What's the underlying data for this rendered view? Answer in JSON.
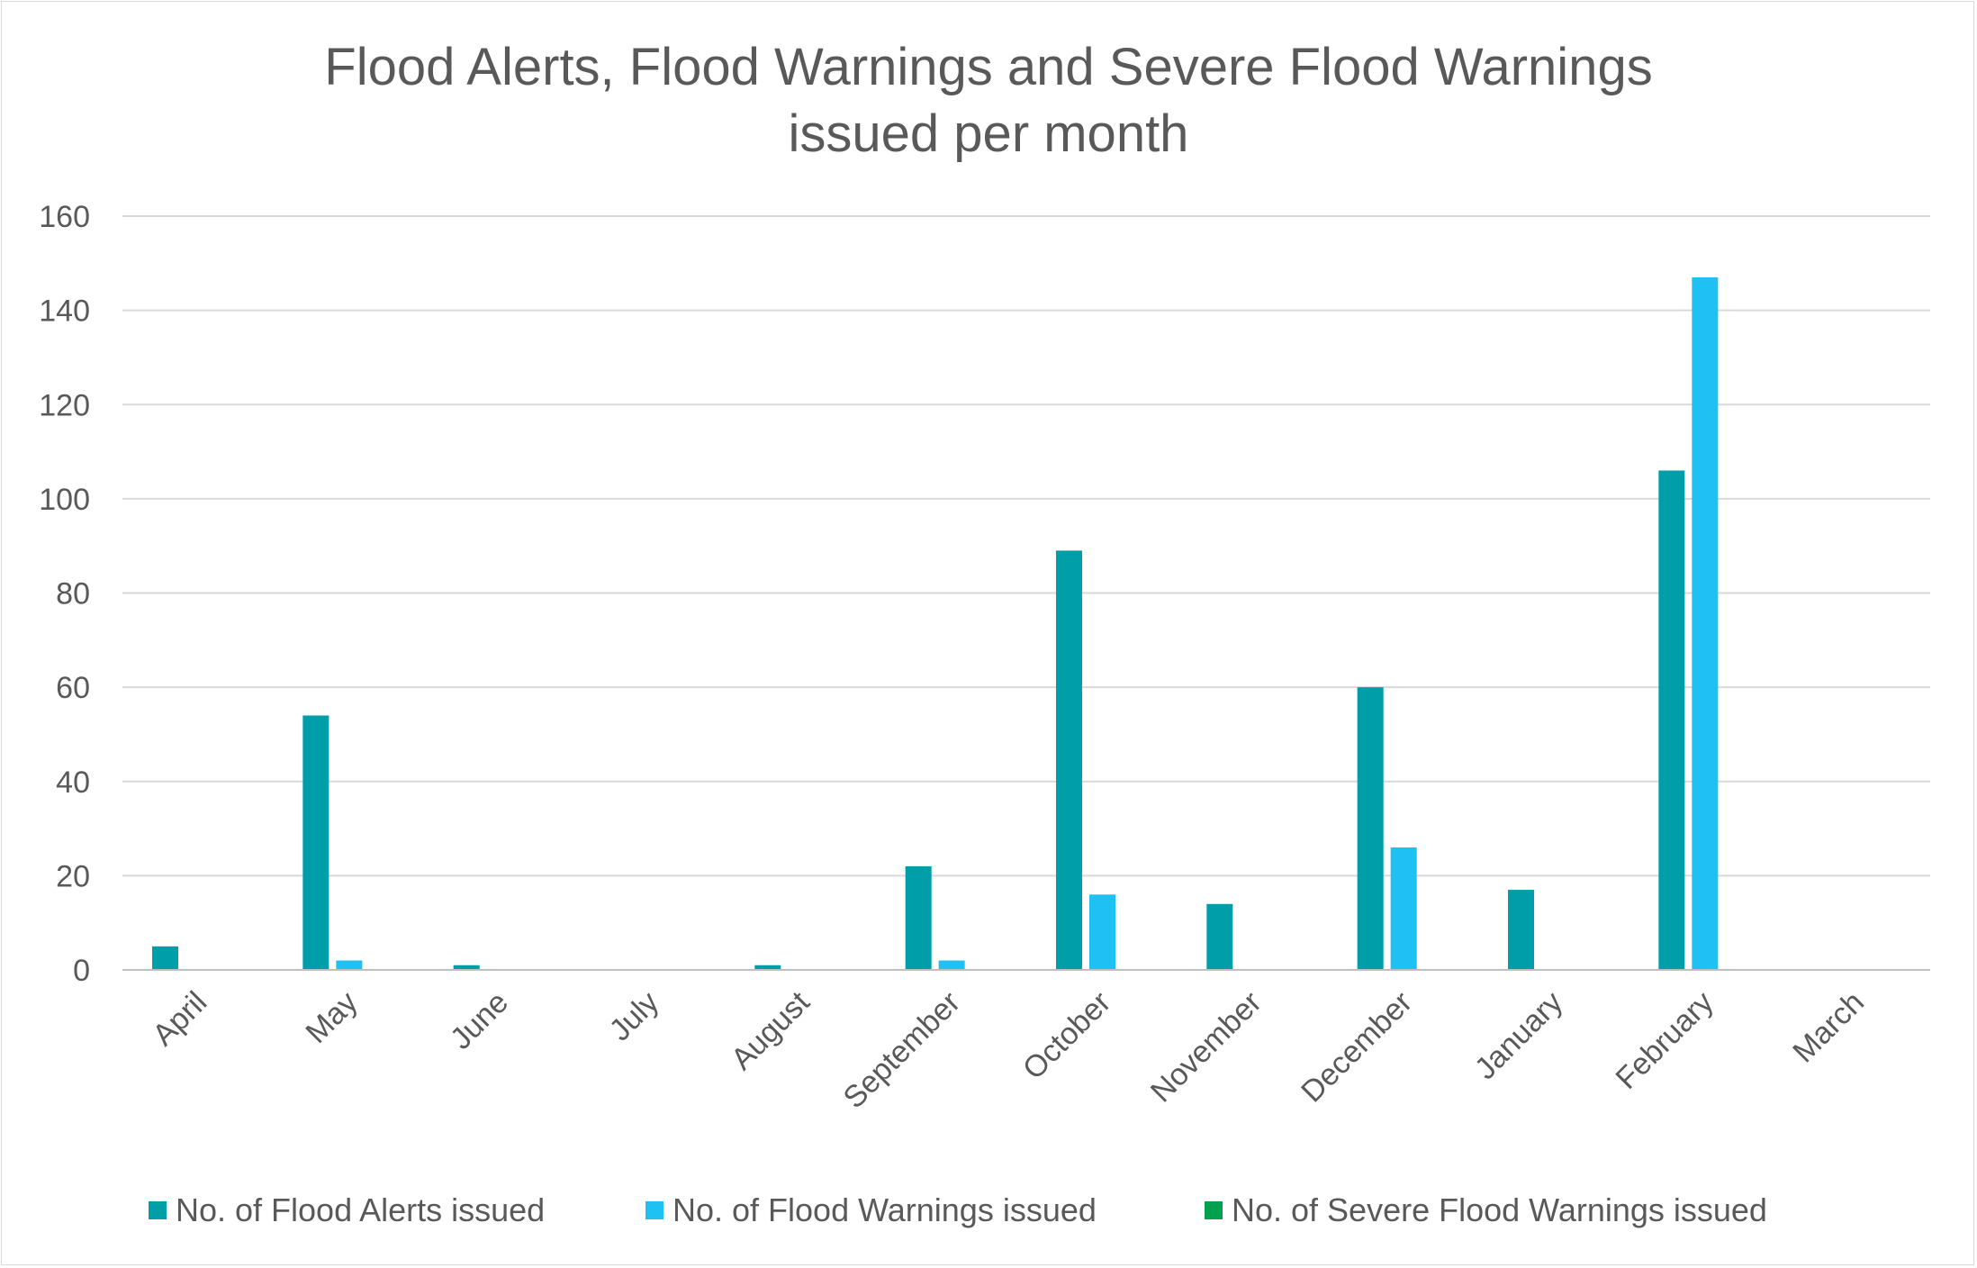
{
  "chart_data": {
    "type": "bar",
    "title": [
      "Flood Alerts, Flood Warnings and Severe Flood Warnings",
      "issued per month"
    ],
    "categories": [
      "April",
      "May",
      "June",
      "July",
      "August",
      "September",
      "October",
      "November",
      "December",
      "January",
      "February",
      "March"
    ],
    "series": [
      {
        "name": "No. of Flood Alerts issued",
        "color": "#009ea8",
        "values": [
          5,
          54,
          1,
          0,
          1,
          22,
          89,
          14,
          60,
          17,
          106,
          0
        ]
      },
      {
        "name": "No. of Flood Warnings issued",
        "color": "#1fc1f2",
        "values": [
          0,
          2,
          0,
          0,
          0,
          2,
          16,
          0,
          26,
          0,
          147,
          0
        ]
      },
      {
        "name": "No. of Severe Flood Warnings issued",
        "color": "#00a04f",
        "values": [
          0,
          0,
          0,
          0,
          0,
          0,
          0,
          0,
          0,
          0,
          0,
          0
        ]
      }
    ],
    "yticks": [
      "0",
      "20",
      "40",
      "60",
      "80",
      "100",
      "120",
      "140",
      "160"
    ],
    "ylim": [
      0,
      160
    ],
    "xlabel": "",
    "ylabel": "",
    "grid": true,
    "legend": "bottom"
  }
}
